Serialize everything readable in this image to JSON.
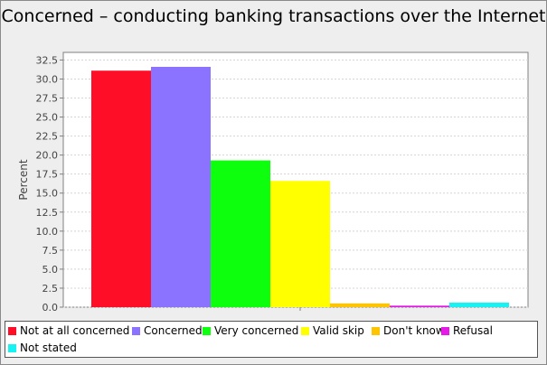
{
  "chart_data": {
    "type": "bar",
    "title": "Concerned – conducting banking transactions over the Internet",
    "xlabel": "",
    "ylabel": "Percent",
    "ylim": [
      0,
      33.5
    ],
    "yticks": [
      "0.0",
      "2.5",
      "5.0",
      "7.5",
      "10.0",
      "12.5",
      "15.0",
      "17.5",
      "20.0",
      "22.5",
      "25.0",
      "27.5",
      "30.0",
      "32.5"
    ],
    "grid": true,
    "legend_position": "bottom",
    "series": [
      {
        "name": "Not at all concerned",
        "value": 31.1,
        "color": "#ff0f27"
      },
      {
        "name": "Concerned",
        "value": 31.6,
        "color": "#8c73ff"
      },
      {
        "name": "Very concerned",
        "value": 19.3,
        "color": "#0dff0d"
      },
      {
        "name": "Valid skip",
        "value": 16.6,
        "color": "#ffff00"
      },
      {
        "name": "Don't know",
        "value": 0.5,
        "color": "#ffc400"
      },
      {
        "name": "Refusal",
        "value": 0.2,
        "color": "#e61ae6"
      },
      {
        "name": "Not stated",
        "value": 0.6,
        "color": "#18f2f2"
      }
    ]
  }
}
